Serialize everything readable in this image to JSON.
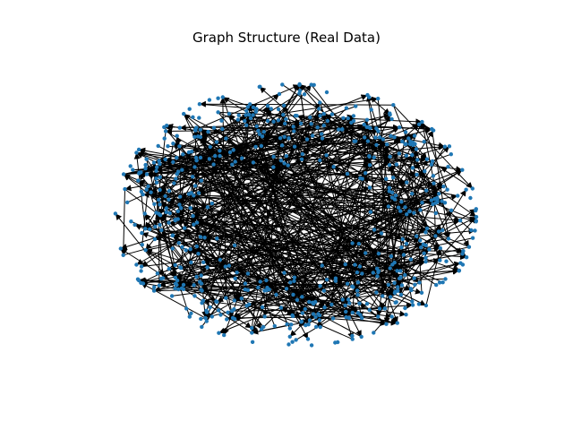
{
  "figure": {
    "title": "Graph Structure (Real Data)"
  },
  "graph": {
    "node_color": "#1f77b4",
    "edge_color": "#000000",
    "directed": true,
    "node_count_estimate": 620,
    "layout": "random-scatter"
  }
}
